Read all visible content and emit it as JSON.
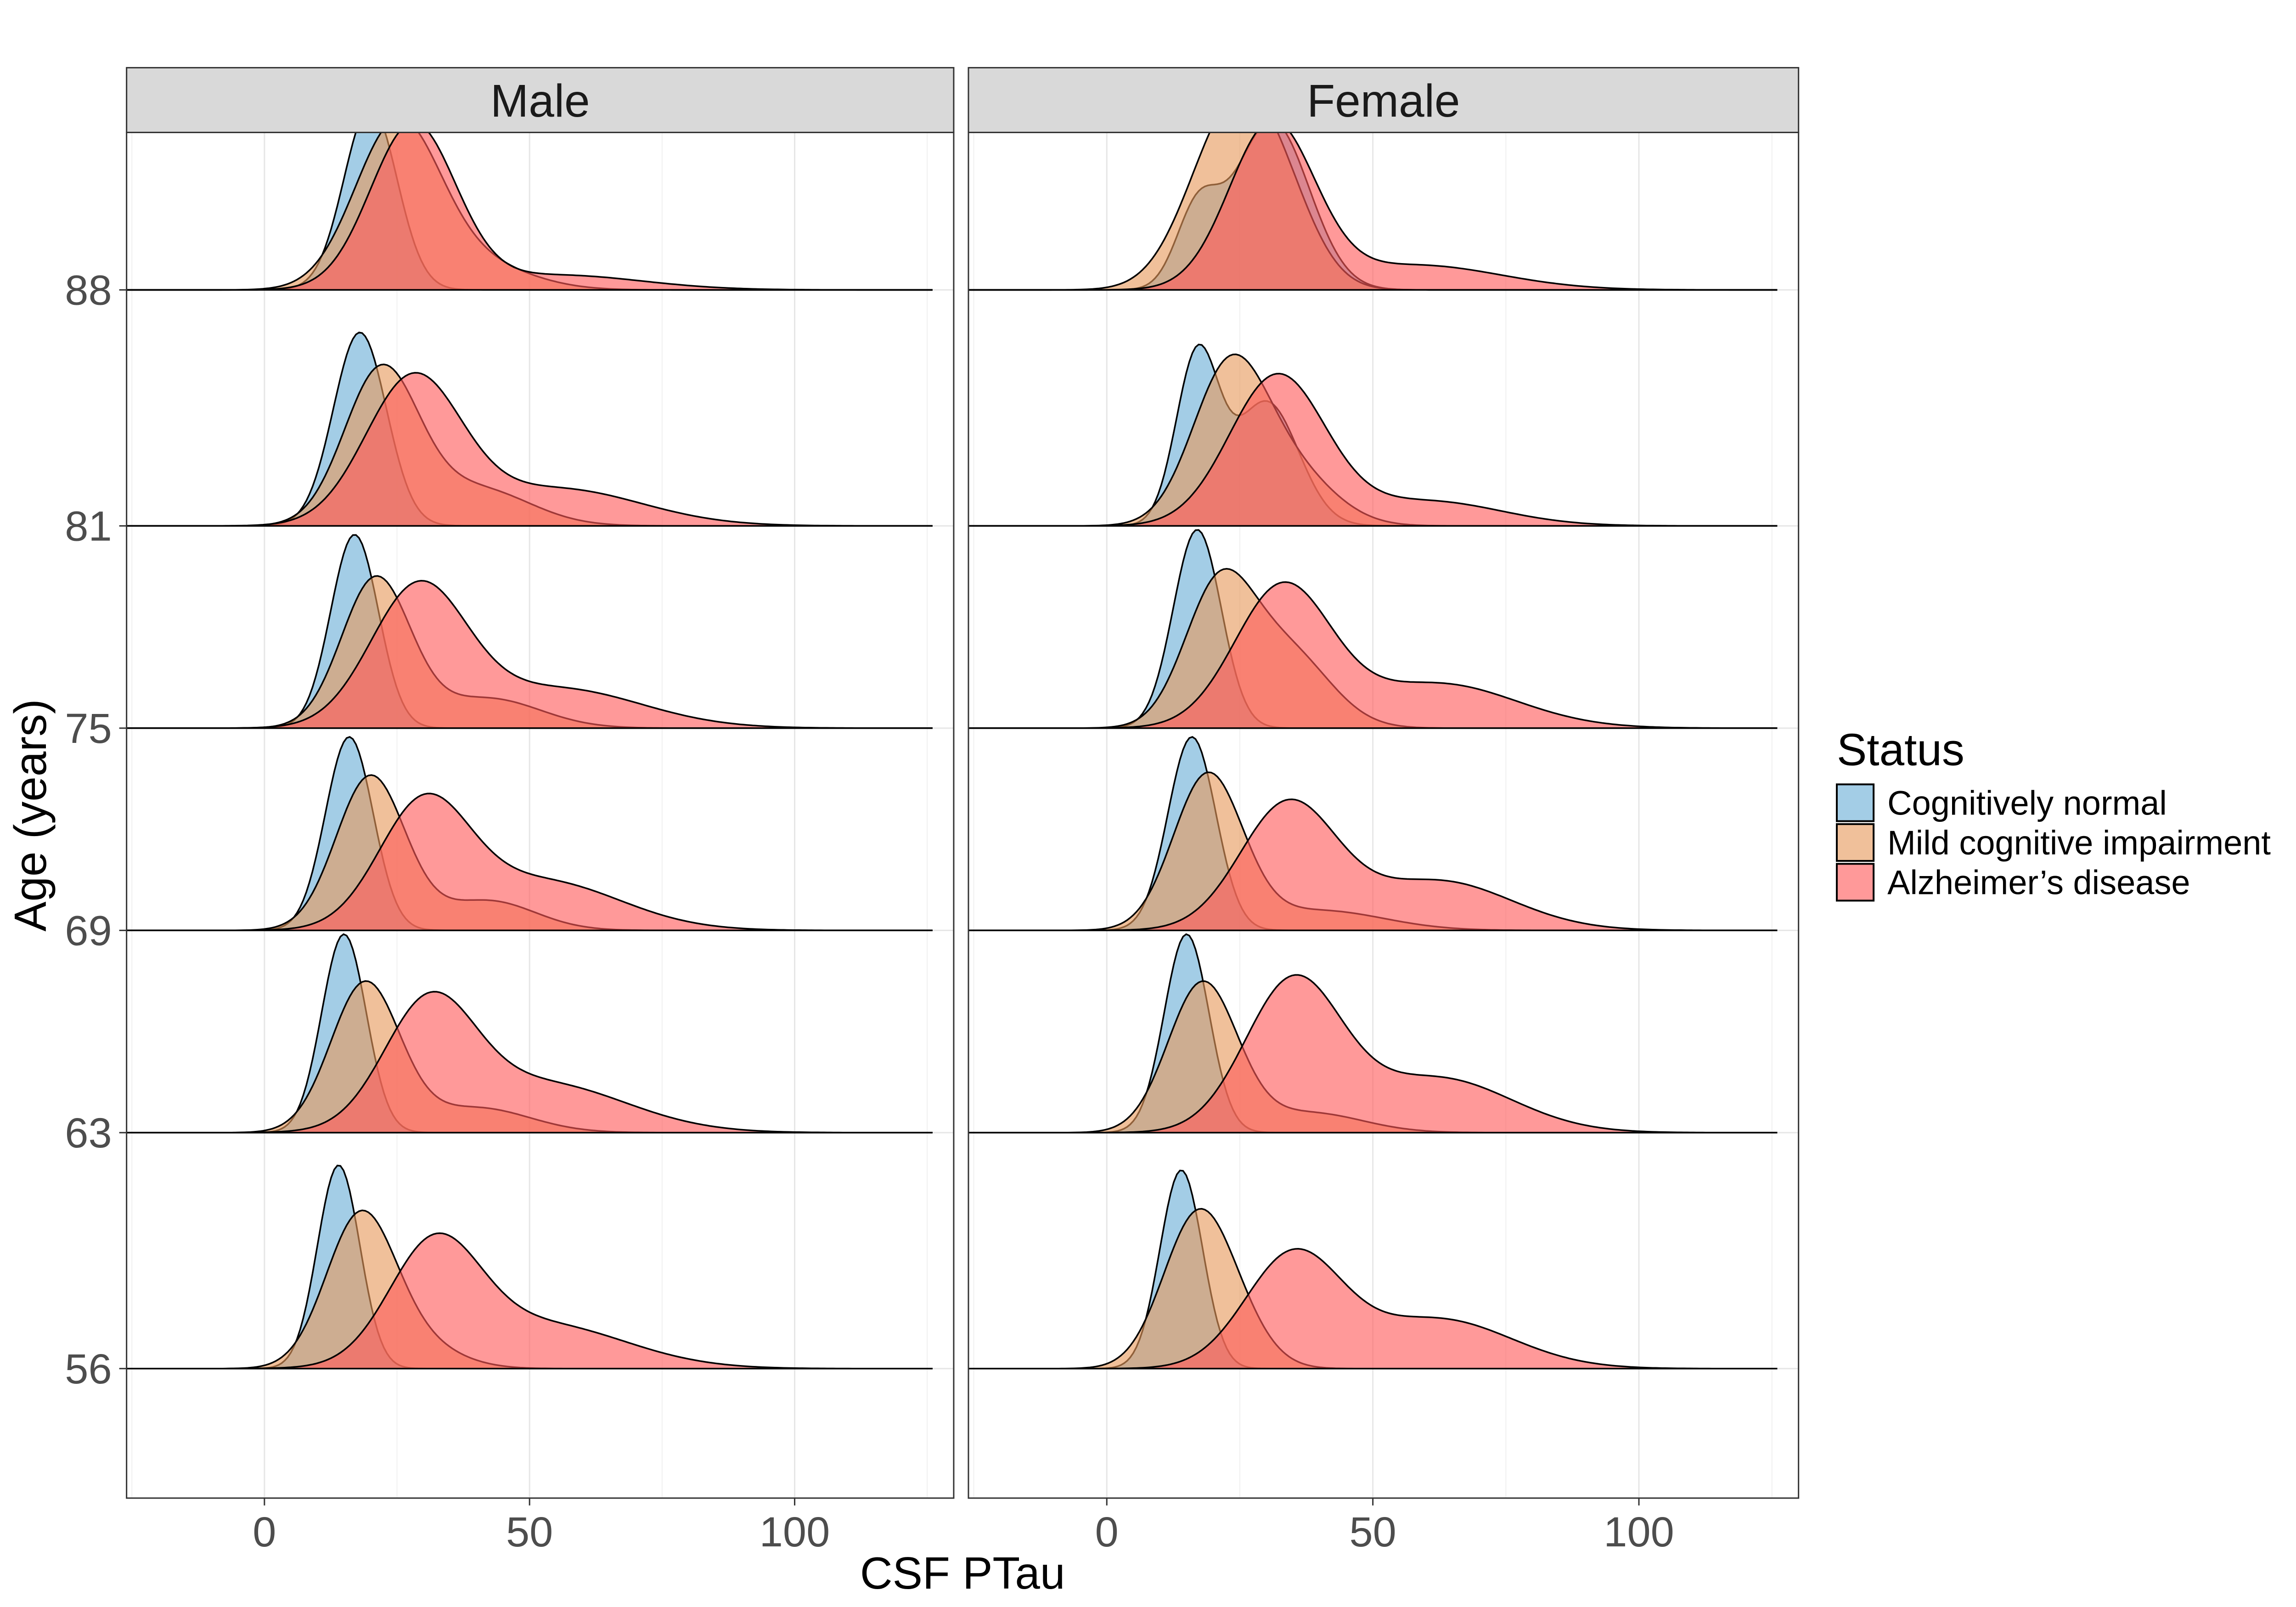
{
  "chart_data": {
    "type": "ridgeline-density",
    "xlabel": "CSF PTau",
    "ylabel": "Age (years)",
    "xlim": [
      -26,
      130
    ],
    "x_ticks": [
      0,
      50,
      100
    ],
    "x_tick_labels": [
      "0",
      "50",
      "100"
    ],
    "y_ticks": [
      56,
      63,
      69,
      75,
      81,
      88
    ],
    "y_tick_labels": [
      "56",
      "63",
      "69",
      "75",
      "81",
      "88"
    ],
    "grid": true,
    "facets": [
      {
        "name": "Male"
      },
      {
        "name": "Female"
      }
    ],
    "legend": {
      "title": "Status",
      "position": "right",
      "entries": [
        {
          "label": "Cognitively normal",
          "color": "#6baed6"
        },
        {
          "label": "Mild cognitive impairment",
          "color": "#e69a5c"
        },
        {
          "label": "Alzheimer’s disease",
          "color": "#ff5a5a"
        }
      ]
    },
    "series": [
      {
        "facet": "Male",
        "age": 56,
        "status": "Cognitively normal",
        "peaks": [
          [
            14,
            0.82,
            4
          ]
        ]
      },
      {
        "facet": "Male",
        "age": 56,
        "status": "Mild cognitive impairment",
        "peaks": [
          [
            18,
            0.59,
            6.5
          ],
          [
            28,
            0.1,
            8
          ]
        ]
      },
      {
        "facet": "Male",
        "age": 56,
        "status": "Alzheimer’s disease",
        "peaks": [
          [
            32,
            0.46,
            8.5
          ],
          [
            52,
            0.18,
            16
          ]
        ]
      },
      {
        "facet": "Male",
        "age": 63,
        "status": "Cognitively normal",
        "peaks": [
          [
            15,
            0.8,
            4.2
          ]
        ]
      },
      {
        "facet": "Male",
        "age": 63,
        "status": "Mild cognitive impairment",
        "peaks": [
          [
            19,
            0.6,
            6.5
          ],
          [
            40,
            0.1,
            10
          ]
        ]
      },
      {
        "facet": "Male",
        "age": 63,
        "status": "Alzheimer’s disease",
        "peaks": [
          [
            31,
            0.48,
            8.5
          ],
          [
            52,
            0.2,
            16
          ]
        ]
      },
      {
        "facet": "Male",
        "age": 69,
        "status": "Cognitively normal",
        "peaks": [
          [
            16,
            0.78,
            4.5
          ]
        ]
      },
      {
        "facet": "Male",
        "age": 69,
        "status": "Mild cognitive impairment",
        "peaks": [
          [
            20,
            0.62,
            6.5
          ],
          [
            42,
            0.12,
            9
          ]
        ]
      },
      {
        "facet": "Male",
        "age": 69,
        "status": "Alzheimer’s disease",
        "peaks": [
          [
            30,
            0.48,
            8.5
          ],
          [
            52,
            0.2,
            15
          ]
        ]
      },
      {
        "facet": "Male",
        "age": 75,
        "status": "Cognitively normal",
        "peaks": [
          [
            17,
            0.78,
            4.5
          ]
        ]
      },
      {
        "facet": "Male",
        "age": 75,
        "status": "Mild cognitive impairment",
        "peaks": [
          [
            21,
            0.6,
            6.5
          ],
          [
            42,
            0.12,
            10
          ]
        ]
      },
      {
        "facet": "Male",
        "age": 75,
        "status": "Alzheimer’s disease",
        "peaks": [
          [
            29,
            0.55,
            9
          ],
          [
            55,
            0.16,
            16
          ]
        ]
      },
      {
        "facet": "Male",
        "age": 81,
        "status": "Cognitively normal",
        "peaks": [
          [
            18,
            0.78,
            5
          ]
        ]
      },
      {
        "facet": "Male",
        "age": 81,
        "status": "Mild cognitive impairment",
        "peaks": [
          [
            22,
            0.62,
            7
          ],
          [
            40,
            0.15,
            10
          ]
        ]
      },
      {
        "facet": "Male",
        "age": 81,
        "status": "Alzheimer’s disease",
        "peaks": [
          [
            28,
            0.58,
            9
          ],
          [
            55,
            0.15,
            16
          ]
        ]
      },
      {
        "facet": "Male",
        "age": 88,
        "status": "Cognitively normal",
        "peaks": [
          [
            20,
            0.74,
            5
          ]
        ]
      },
      {
        "facet": "Male",
        "age": 88,
        "status": "Mild cognitive impairment",
        "peaks": [
          [
            25,
            0.66,
            8
          ],
          [
            40,
            0.1,
            10
          ]
        ]
      },
      {
        "facet": "Male",
        "age": 88,
        "status": "Alzheimer’s disease",
        "peaks": [
          [
            28,
            0.66,
            8
          ],
          [
            55,
            0.06,
            16
          ]
        ]
      },
      {
        "facet": "Female",
        "age": 56,
        "status": "Cognitively normal",
        "peaks": [
          [
            14,
            0.8,
            4
          ]
        ]
      },
      {
        "facet": "Female",
        "age": 56,
        "status": "Mild cognitive impairment",
        "peaks": [
          [
            17,
            0.6,
            6.5
          ],
          [
            25,
            0.1,
            6
          ]
        ]
      },
      {
        "facet": "Female",
        "age": 56,
        "status": "Alzheimer’s disease",
        "peaks": [
          [
            35,
            0.45,
            9
          ],
          [
            62,
            0.2,
            14
          ]
        ]
      },
      {
        "facet": "Female",
        "age": 63,
        "status": "Cognitively normal",
        "peaks": [
          [
            15,
            0.8,
            4.2
          ]
        ]
      },
      {
        "facet": "Female",
        "age": 63,
        "status": "Mild cognitive impairment",
        "peaks": [
          [
            18,
            0.6,
            6.5
          ],
          [
            38,
            0.08,
            10
          ]
        ]
      },
      {
        "facet": "Female",
        "age": 63,
        "status": "Alzheimer’s disease",
        "peaks": [
          [
            35,
            0.6,
            9
          ],
          [
            62,
            0.22,
            14
          ]
        ]
      },
      {
        "facet": "Female",
        "age": 69,
        "status": "Cognitively normal",
        "peaks": [
          [
            16,
            0.78,
            4.5
          ]
        ]
      },
      {
        "facet": "Female",
        "age": 69,
        "status": "Mild cognitive impairment",
        "peaks": [
          [
            19,
            0.62,
            6.5
          ],
          [
            40,
            0.08,
            12
          ]
        ]
      },
      {
        "facet": "Female",
        "age": 69,
        "status": "Alzheimer’s disease",
        "peaks": [
          [
            34,
            0.5,
            9
          ],
          [
            62,
            0.2,
            14
          ]
        ]
      },
      {
        "facet": "Female",
        "age": 75,
        "status": "Cognitively normal",
        "peaks": [
          [
            17,
            0.8,
            4.5
          ]
        ]
      },
      {
        "facet": "Female",
        "age": 75,
        "status": "Mild cognitive impairment",
        "peaks": [
          [
            21,
            0.55,
            6.5
          ],
          [
            34,
            0.3,
            8
          ]
        ]
      },
      {
        "facet": "Female",
        "age": 75,
        "status": "Alzheimer’s disease",
        "peaks": [
          [
            33,
            0.56,
            9
          ],
          [
            62,
            0.18,
            15
          ]
        ]
      },
      {
        "facet": "Female",
        "age": 81,
        "status": "Cognitively normal",
        "peaks": [
          [
            17,
            0.68,
            4
          ],
          [
            30,
            0.5,
            6
          ]
        ]
      },
      {
        "facet": "Female",
        "age": 81,
        "status": "Mild cognitive impairment",
        "peaks": [
          [
            23,
            0.62,
            7
          ],
          [
            35,
            0.2,
            8
          ]
        ]
      },
      {
        "facet": "Female",
        "age": 81,
        "status": "Alzheimer’s disease",
        "peaks": [
          [
            32,
            0.6,
            9
          ],
          [
            60,
            0.1,
            14
          ]
        ]
      },
      {
        "facet": "Female",
        "age": 88,
        "status": "Cognitively normal",
        "peaks": [
          [
            17,
            0.3,
            4
          ],
          [
            31,
            0.68,
            7
          ]
        ]
      },
      {
        "facet": "Female",
        "age": 88,
        "status": "Mild cognitive impairment",
        "peaks": [
          [
            23,
            0.64,
            8
          ],
          [
            32,
            0.3,
            7
          ]
        ]
      },
      {
        "facet": "Female",
        "age": 88,
        "status": "Alzheimer’s disease",
        "peaks": [
          [
            31,
            0.66,
            8
          ],
          [
            58,
            0.1,
            16
          ]
        ]
      }
    ]
  }
}
